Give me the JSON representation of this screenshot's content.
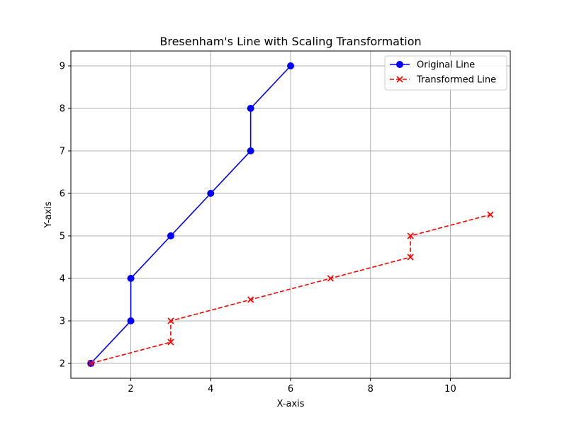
{
  "chart_data": {
    "type": "line",
    "title": "Bresenham's Line with Scaling Transformation",
    "xlabel": "X-axis",
    "ylabel": "Y-axis",
    "xlim": [
      0.5,
      11.5
    ],
    "ylim": [
      1.65,
      9.35
    ],
    "xticks": [
      2,
      4,
      6,
      8,
      10
    ],
    "yticks": [
      2,
      3,
      4,
      5,
      6,
      7,
      8,
      9
    ],
    "grid": true,
    "legend_position": "upper right",
    "series": [
      {
        "name": "Original Line",
        "color": "#0000ff",
        "marker": "circle",
        "linestyle": "solid",
        "x": [
          1,
          2,
          2,
          3,
          4,
          5,
          5,
          6
        ],
        "y": [
          2,
          3,
          4,
          5,
          6,
          7,
          8,
          9
        ]
      },
      {
        "name": "Transformed Line",
        "color": "#ff0000",
        "marker": "x",
        "linestyle": "dashed",
        "x": [
          1,
          3,
          3,
          5,
          7,
          9,
          9,
          11
        ],
        "y": [
          2,
          2.5,
          3,
          3.5,
          4,
          4.5,
          5,
          5.5
        ]
      }
    ]
  }
}
